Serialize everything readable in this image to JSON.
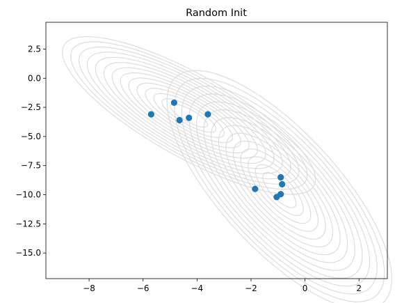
{
  "chart_data": {
    "type": "scatter",
    "title": "Random Init",
    "xlabel": "",
    "ylabel": "",
    "xlim": [
      -9.6,
      3.05
    ],
    "ylim": [
      -17.2,
      4.8
    ],
    "xticks": [
      -8,
      -6,
      -4,
      -2,
      0,
      2
    ],
    "yticks": [
      2.5,
      0.0,
      -2.5,
      -5.0,
      -7.5,
      -10.0,
      -12.5,
      -15.0
    ],
    "xtick_labels": [
      "−8",
      "−6",
      "−4",
      "−2",
      "0",
      "2"
    ],
    "ytick_labels": [
      "2.5",
      "0.0",
      "−2.5",
      "−5.0",
      "−7.5",
      "−10.0",
      "−12.5",
      "−15.0"
    ],
    "grid": false,
    "series": [
      {
        "color": "#1f77b4",
        "points": [
          [
            -5.7,
            -3.1
          ],
          [
            -4.85,
            -2.1
          ],
          [
            -4.65,
            -3.6
          ],
          [
            -4.3,
            -3.4
          ],
          [
            -3.6,
            -3.1
          ],
          [
            -0.9,
            -8.5
          ],
          [
            -0.85,
            -9.1
          ],
          [
            -1.85,
            -9.5
          ],
          [
            -0.9,
            -9.95
          ],
          [
            -1.05,
            -10.2
          ]
        ]
      }
    ],
    "background_contours": {
      "color": "#dcdcdc",
      "components": [
        {
          "mean": [
            -4.3,
            -3.2
          ],
          "angle_deg": -33,
          "sd_major": 1.8,
          "sd_minor": 0.55
        },
        {
          "mean": [
            -0.95,
            -9.6
          ],
          "angle_deg": -52,
          "sd_major": 2.0,
          "sd_minor": 0.75
        }
      ]
    }
  }
}
